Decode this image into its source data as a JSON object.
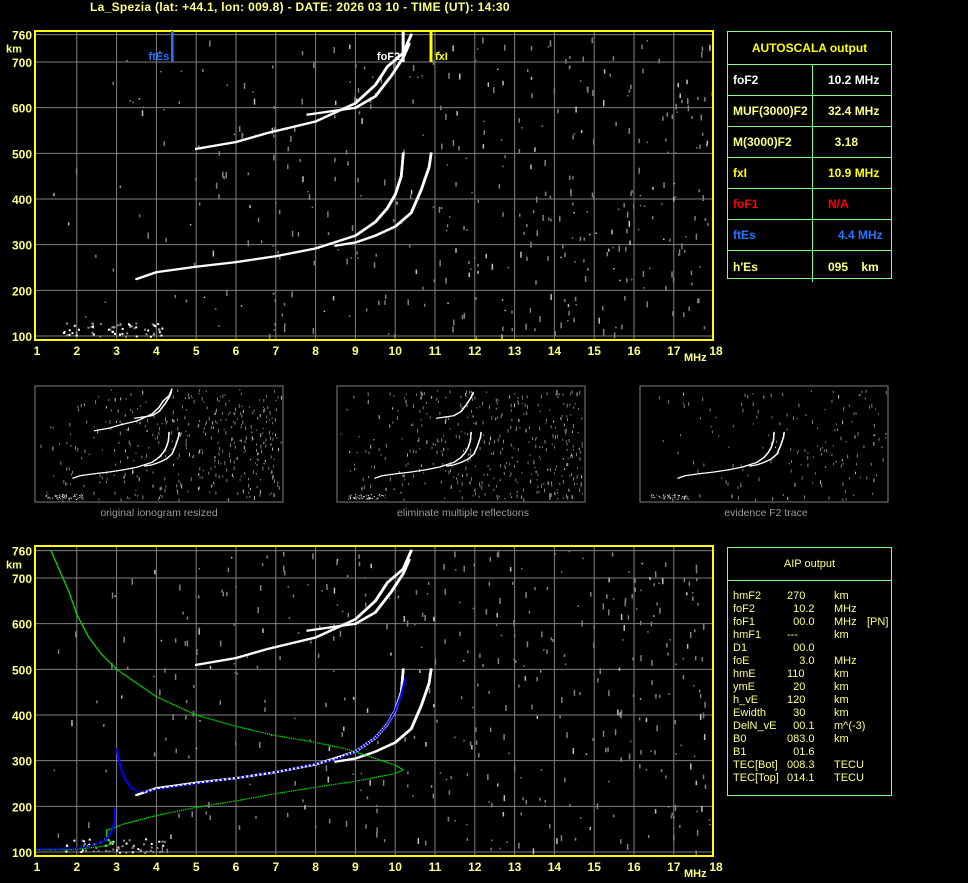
{
  "header": {
    "title": "La_Spezia (lat: +44.1, lon: 009.8) - DATE: 2026 03 10 - TIME (UT): 14:30"
  },
  "colors": {
    "frame": "#ffff00",
    "grid": "#808080",
    "table_border": "#80ff80",
    "ftEs": "#1e78ff",
    "foF1": "#ff0000",
    "fxI": "#ffff00",
    "profile": "#00e000",
    "fit": "#0000ff"
  },
  "autoscala": {
    "title": "AUTOSCALA output",
    "rows": [
      {
        "label": "foF2",
        "value": "10.2 MHz",
        "color": "#ffffff"
      },
      {
        "label": "MUF(3000)F2",
        "value": "32.4 MHz",
        "color": "#ffff80"
      },
      {
        "label": "M(3000)F2",
        "value": "  3.18",
        "color": "#ffff80"
      },
      {
        "label": "fxI",
        "value": "10.9 MHz",
        "color": "#ffff00"
      },
      {
        "label": "foF1",
        "value": "N/A",
        "color": "#ff0000"
      },
      {
        "label": "ftEs",
        "value": "   4.4 MHz",
        "color": "#1e78ff"
      },
      {
        "label": "h'Es",
        "value": "095    km",
        "color": "#ffff80"
      }
    ]
  },
  "aip": {
    "title": "AIP output",
    "rows": [
      [
        "hmF2",
        "270",
        "km",
        ""
      ],
      [
        "foF2",
        "  10.2",
        "MHz",
        ""
      ],
      [
        "foF1",
        "  00.0",
        "MHz",
        "[PN]"
      ],
      [
        "hmF1",
        "---",
        "km",
        ""
      ],
      [
        "D1",
        "  00.0",
        "",
        ""
      ],
      [
        "foE",
        "    3.0",
        "MHz",
        ""
      ],
      [
        "hmE",
        "110",
        "km",
        ""
      ],
      [
        "ymE",
        "  20",
        "km",
        ""
      ],
      [
        "h_vE",
        "120",
        "km",
        ""
      ],
      [
        "Ewidth",
        "  30",
        "km",
        ""
      ],
      [
        "DelN_vE",
        "  00.1",
        "m^(-3)",
        ""
      ],
      [
        "B0",
        "083.0",
        "km",
        ""
      ],
      [
        "B1",
        "  01.6",
        "",
        ""
      ],
      [
        "TEC[Bot]",
        "008.3",
        "TECU",
        ""
      ],
      [
        "TEC[Top]",
        "014.1",
        "TECU",
        ""
      ]
    ]
  },
  "thumbnails": [
    "original ionogram resized",
    "eliminate multiple reflections",
    "evidence F2 trace"
  ],
  "chart_data": [
    {
      "type": "scatter",
      "title": "",
      "xlabel": "MHz",
      "ylabel": "km",
      "xlim": [
        1,
        18
      ],
      "ylim": [
        100,
        760
      ],
      "xticks": [
        "1",
        "2",
        "3",
        "4",
        "5",
        "6",
        "7",
        "8",
        "9",
        "10",
        "11",
        "12",
        "13",
        "14",
        "15",
        "16",
        "17",
        "18"
      ],
      "yticks": [
        "100",
        "200",
        "300",
        "400",
        "500",
        "600",
        "700",
        "760"
      ],
      "grid": true,
      "markers": [
        {
          "label": "ftEs",
          "freq": 4.4
        },
        {
          "label": "foF2",
          "freq": 10.2
        },
        {
          "label": "fxI",
          "freq": 10.9
        }
      ],
      "series": [
        {
          "points": [
            [
              3.5,
              225
            ],
            [
              4,
              240
            ],
            [
              5,
              252
            ],
            [
              6,
              262
            ],
            [
              7,
              275
            ],
            [
              8,
              292
            ],
            [
              9,
              320
            ],
            [
              9.5,
              350
            ],
            [
              9.8,
              380
            ],
            [
              10,
              410
            ],
            [
              10.15,
              450
            ],
            [
              10.2,
              500
            ]
          ]
        },
        {
          "points": [
            [
              8.5,
              298
            ],
            [
              9,
              305
            ],
            [
              9.5,
              320
            ],
            [
              10,
              340
            ],
            [
              10.4,
              370
            ],
            [
              10.65,
              420
            ],
            [
              10.85,
              470
            ],
            [
              10.9,
              500
            ]
          ]
        },
        {
          "points": [
            [
              5,
              510
            ],
            [
              6,
              525
            ],
            [
              6.8,
              545
            ],
            [
              8,
              570
            ],
            [
              9,
              610
            ],
            [
              9.5,
              650
            ],
            [
              9.8,
              690
            ],
            [
              10.2,
              720
            ],
            [
              10.4,
              760
            ]
          ]
        },
        {
          "points": [
            [
              7.8,
              585
            ],
            [
              9,
              600
            ],
            [
              9.5,
              625
            ],
            [
              9.9,
              670
            ],
            [
              10.2,
              710
            ],
            [
              10.35,
              740
            ]
          ]
        }
      ]
    },
    {
      "type": "line",
      "title": "",
      "xlabel": "MHz",
      "ylabel": "km",
      "xlim": [
        1,
        18
      ],
      "ylim": [
        100,
        760
      ],
      "grid": true,
      "series": [
        {
          "points": [
            [
              1.35,
              760
            ],
            [
              1.6,
              710
            ],
            [
              1.8,
              670
            ],
            [
              2,
              620
            ],
            [
              2.3,
              570
            ],
            [
              2.6,
              535
            ],
            [
              3,
              500
            ],
            [
              3.5,
              470
            ],
            [
              4,
              440
            ],
            [
              5,
              400
            ],
            [
              6,
              375
            ],
            [
              7,
              355
            ],
            [
              8,
              340
            ],
            [
              8.8,
              325
            ],
            [
              9.5,
              305
            ],
            [
              10,
              290
            ],
            [
              10.2,
              280
            ],
            [
              10,
              272
            ],
            [
              9,
              255
            ],
            [
              8,
              242
            ],
            [
              7,
              228
            ],
            [
              6,
              212
            ],
            [
              5,
              198
            ],
            [
              4,
              180
            ],
            [
              3.2,
              162
            ],
            [
              2.9,
              152
            ],
            [
              2.75,
              148
            ],
            [
              2.75,
              128
            ],
            [
              2.9,
              120
            ],
            [
              2.75,
              114
            ],
            [
              2.2,
              108
            ],
            [
              1.8,
              105
            ],
            [
              1,
              105
            ]
          ]
        },
        {
          "points": [
            [
              1,
              107
            ],
            [
              1.5,
              107
            ],
            [
              2,
              108
            ],
            [
              2.3,
              113
            ],
            [
              2.5,
              118
            ],
            [
              2.7,
              125
            ],
            [
              2.85,
              140
            ],
            [
              2.95,
              165
            ],
            [
              3,
              325
            ],
            [
              3.1,
              285
            ],
            [
              3.2,
              262
            ],
            [
              3.35,
              242
            ],
            [
              3.5,
              233
            ],
            [
              3.8,
              233
            ],
            [
              4,
              237
            ],
            [
              5,
              250
            ],
            [
              6,
              262
            ],
            [
              7,
              275
            ],
            [
              8,
              293
            ],
            [
              8.5,
              303
            ],
            [
              9,
              320
            ],
            [
              9.5,
              350
            ],
            [
              9.8,
              380
            ],
            [
              10,
              410
            ],
            [
              10.15,
              445
            ],
            [
              10.25,
              480
            ]
          ]
        }
      ]
    }
  ]
}
